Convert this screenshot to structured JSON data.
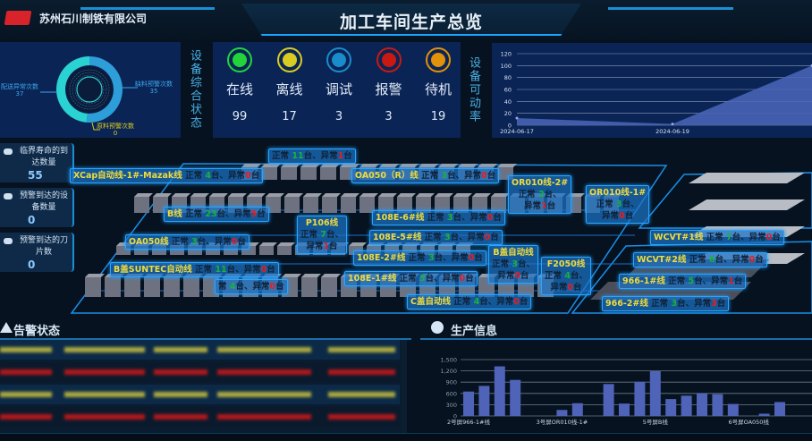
{
  "header": {
    "company": "苏州石川制铁有限公司",
    "title": "加工车间生产总览"
  },
  "colors": {
    "accent": "#1aa3ff",
    "panel": "#0b2456",
    "online": "#22d33a",
    "offline": "#d8cc22",
    "debug": "#1a8ccc",
    "alarm": "#c81a12",
    "standby": "#e0920a"
  },
  "donut": {
    "type": "pie",
    "slices": [
      {
        "name": "配送异常次数",
        "value": 37,
        "color": "#2d9ed8"
      },
      {
        "name": "缺料预警次数",
        "value": 35,
        "color": "#2ad2d2"
      },
      {
        "name": "原料预警次数",
        "value": 0,
        "color": "#d8cc22"
      }
    ]
  },
  "labels": {
    "overall_status": "设备综合状态",
    "availability": "设备可动率",
    "alarm_status": "告警状态",
    "production_info": "生产信息"
  },
  "status": [
    {
      "label": "在线",
      "value": "99",
      "color": "#22d33a"
    },
    {
      "label": "离线",
      "value": "17",
      "color": "#d8cc22"
    },
    {
      "label": "调试",
      "value": "3",
      "color": "#1a8ccc"
    },
    {
      "label": "报警",
      "value": "3",
      "color": "#c81a12"
    },
    {
      "label": "待机",
      "value": "19",
      "color": "#e0920a"
    }
  ],
  "cards": [
    {
      "title": "临界寿命的到达数量",
      "value": "55",
      "icon": "gears-icon"
    },
    {
      "title": "预警到达的设备数量",
      "value": "0",
      "icon": "shield-icon"
    },
    {
      "title": "预警到达的刀片数",
      "value": "0",
      "icon": "layers-icon"
    }
  ],
  "lines": [
    {
      "name": "XCap自动线-1#-Mazak线",
      "ok": "4",
      "ng": "0"
    },
    {
      "name": "",
      "ok": "11",
      "ng": "1"
    },
    {
      "name": "OA050（R）线",
      "ok": "3",
      "ng": "0"
    },
    {
      "name": "OR010线-2#",
      "ok": "2",
      "ng": "1"
    },
    {
      "name": "OR010线-1#",
      "ok": "3",
      "ng": "0"
    },
    {
      "name": "B线",
      "ok": "23",
      "ng": "5"
    },
    {
      "name": "P106线",
      "ok": "7",
      "ng": "1"
    },
    {
      "name": "108E-6#线",
      "ok": "3",
      "ng": "0"
    },
    {
      "name": "108E-5#线",
      "ok": "3",
      "ng": "0"
    },
    {
      "name": "OA050线",
      "ok": "3",
      "ng": "0"
    },
    {
      "name": "B盖自动线",
      "ok": "3",
      "ng": "0"
    },
    {
      "name": "WCVT#1线",
      "ok": "7",
      "ng": "0"
    },
    {
      "name": "108E-2#线",
      "ok": "3",
      "ng": "0"
    },
    {
      "name": "F2050线",
      "ok": "4",
      "ng": "0"
    },
    {
      "name": "WCVT#2线",
      "ok": "6",
      "ng": "0"
    },
    {
      "name": "B盖SUNTEC自动线",
      "ok": "11",
      "ng": "0"
    },
    {
      "name": "",
      "ok": "4",
      "ng": "0"
    },
    {
      "name": "108E-1#线",
      "ok": "3",
      "ng": "0"
    },
    {
      "name": "966-1#线",
      "ok": "5",
      "ng": "1"
    },
    {
      "name": "C盖自动线",
      "ok": "4",
      "ng": "0"
    },
    {
      "name": "966-2#线",
      "ok": "3",
      "ng": "3"
    }
  ],
  "line_text": {
    "normal": "正常",
    "abnormal": "异常",
    "unit": "台",
    "sep": "、",
    "partial_normal": "常"
  },
  "chart_data": [
    {
      "type": "area",
      "x_ticks": [
        "2024-06-17",
        "2024-06-19"
      ],
      "values": [
        12,
        2,
        100
      ],
      "ylim": [
        0,
        120
      ],
      "yticks": [
        0,
        20,
        40,
        60,
        80,
        100,
        120
      ],
      "grid": true,
      "color": "#4a66b8"
    },
    {
      "type": "bar",
      "values": [
        650,
        800,
        1320,
        960,
        0,
        0,
        160,
        340,
        0,
        850,
        330,
        910,
        1190,
        450,
        540,
        600,
        580,
        320,
        0,
        60,
        370
      ],
      "x_tick_labels": [
        {
          "index": 0,
          "label": "2号屏966-1#线"
        },
        {
          "index": 6,
          "label": "3号屏OR010线-1#"
        },
        {
          "index": 12,
          "label": "5号屏B线"
        },
        {
          "index": 18,
          "label": "6号屏OA050线"
        }
      ],
      "ylim": [
        0,
        1500
      ],
      "yticks": [
        "0",
        "300",
        "600",
        "900",
        "1,200",
        "1,500"
      ],
      "grid": true,
      "color": "#4f63b8"
    }
  ],
  "alarm_rows": [
    {
      "color": "#c8c040"
    },
    {
      "color": "#d01818"
    },
    {
      "color": "#c8c040"
    },
    {
      "color": "#d01818"
    }
  ]
}
